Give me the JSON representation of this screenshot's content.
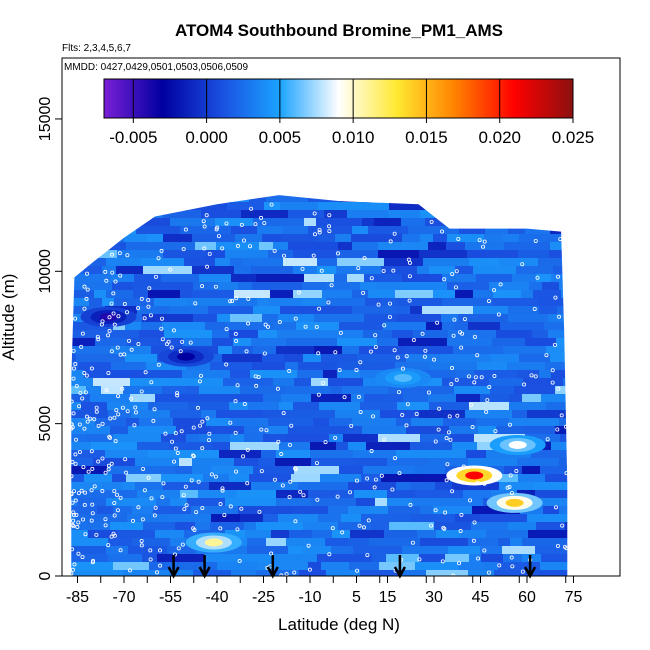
{
  "chart_data": {
    "type": "heatmap",
    "title": "ATOM4 Southbound Bromine_PM1_AMS",
    "flights_label": "Flts: 2,3,4,5,6,7",
    "dates_label": "MMDD: 0427,0429,0501,0503,0506,0509",
    "xlabel": "Latitude (deg N)",
    "ylabel": "Altitude (m)",
    "xlim": [
      -90,
      90
    ],
    "ylim": [
      0,
      17000
    ],
    "x_ticks": [
      -85,
      -70,
      -55,
      -40,
      -25,
      -10,
      5,
      15,
      30,
      45,
      60,
      75
    ],
    "x_tick_labels": [
      "-85",
      "-70",
      "-55",
      "-40",
      "-25",
      "-10",
      "5",
      "15",
      "30",
      "45",
      "60",
      "75"
    ],
    "y_ticks": [
      0,
      5000,
      10000,
      15000
    ],
    "y_tick_labels": [
      "0",
      "5000",
      "10000",
      "15000"
    ],
    "colorbar": {
      "min": -0.007,
      "max": 0.025,
      "ticks": [
        -0.005,
        0.0,
        0.005,
        0.01,
        0.015,
        0.02,
        0.025
      ],
      "tick_labels": [
        "-0.005",
        "0.000",
        "0.005",
        "0.010",
        "0.015",
        "0.020",
        "0.025"
      ],
      "colors": [
        "#7a1fd6",
        "#0000a0",
        "#1a4fe0",
        "#1aa3ff",
        "#ffffff",
        "#ffe830",
        "#ff8000",
        "#ff0000",
        "#8b1010"
      ]
    },
    "background_color": "#3d7af0",
    "profile_arrows_lat": [
      -54,
      -44,
      -22,
      19,
      61
    ],
    "coverage_envelope": [
      {
        "lat": -87,
        "alt_top": 6500
      },
      {
        "lat": -86,
        "alt_top": 9800
      },
      {
        "lat": -80,
        "alt_top": 10300
      },
      {
        "lat": -75,
        "alt_top": 10700
      },
      {
        "lat": -70,
        "alt_top": 11100
      },
      {
        "lat": -60,
        "alt_top": 11800
      },
      {
        "lat": -50,
        "alt_top": 12000
      },
      {
        "lat": -40,
        "alt_top": 12200
      },
      {
        "lat": -20,
        "alt_top": 12500
      },
      {
        "lat": 0,
        "alt_top": 12300
      },
      {
        "lat": 25,
        "alt_top": 12200
      },
      {
        "lat": 35,
        "alt_top": 11400
      },
      {
        "lat": 60,
        "alt_top": 11400
      },
      {
        "lat": 71,
        "alt_top": 11300
      },
      {
        "lat": 72,
        "alt_top": 8000
      },
      {
        "lat": 73,
        "alt_top": 3000
      },
      {
        "lat": 73,
        "alt_top": 0
      }
    ],
    "hotspots": [
      {
        "lat": 43,
        "alt": 3300,
        "value": 0.021
      },
      {
        "lat": 56,
        "alt": 2400,
        "value": 0.014
      },
      {
        "lat": 57,
        "alt": 4300,
        "value": 0.009
      },
      {
        "lat": -41,
        "alt": 1100,
        "value": 0.011
      },
      {
        "lat": 20,
        "alt": 6500,
        "value": 0.006
      },
      {
        "lat": -75,
        "alt": 8500,
        "value": -0.004
      },
      {
        "lat": -50,
        "alt": 7200,
        "value": -0.003
      }
    ]
  }
}
